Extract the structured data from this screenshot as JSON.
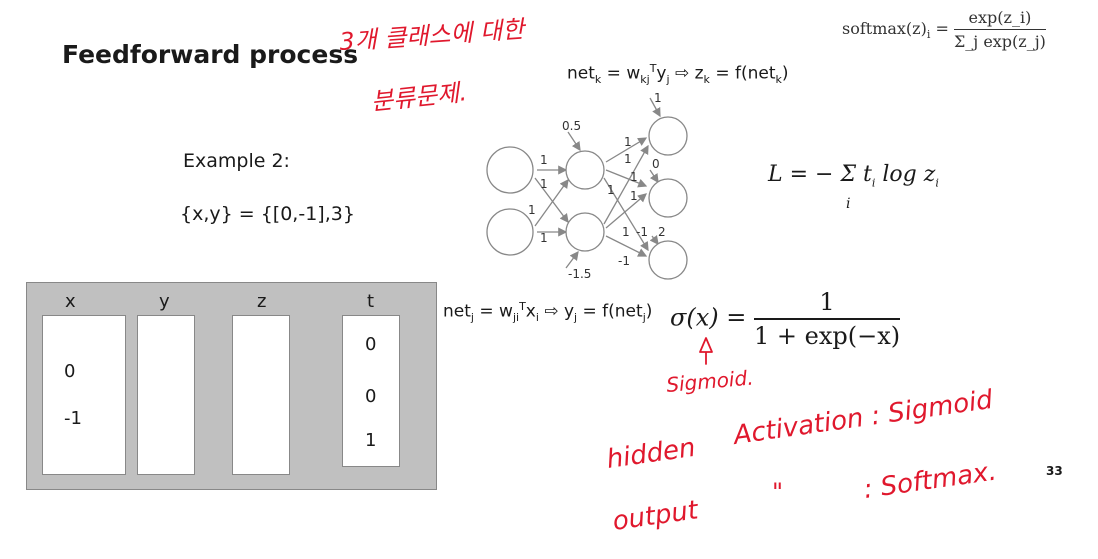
{
  "slide": {
    "title": "Feedforward process",
    "page_number": "33",
    "softmax": {
      "lhs": "softmax(z)",
      "sub": "i",
      "eq": " = ",
      "numerator": "exp(z_i)",
      "denominator": "Σ_j exp(z_j)"
    },
    "net_k": {
      "a": "net",
      "a_sub": "k",
      "b": " = w",
      "b_sub": "kj",
      "b_sup": "T",
      "c": "y",
      "c_sub": "j",
      "arrow": " ⇨ ",
      "d": "z",
      "d_sub": "k",
      "e": " = f(net",
      "e_sub": "k",
      "f": ")"
    },
    "net_j": {
      "a": "net",
      "a_sub": "j",
      "b": " = w",
      "b_sub": "ji",
      "b_sup": "T",
      "c": "x",
      "c_sub": "i",
      "arrow": " ⇨ ",
      "d": "y",
      "d_sub": "j",
      "e": " = f(net",
      "e_sub": "j",
      "f": ")"
    },
    "example_label": "Example 2:",
    "example_value": "{x,y} = {[0,-1],3}",
    "loss_formula": "L = − Σ t",
    "loss_sub_i": "i",
    "loss_tail": " log z",
    "loss_sub_i2": "i",
    "loss_sigma_index": "i",
    "sigmoid_lhs": "σ(x) = ",
    "sigmoid_num": "1",
    "sigmoid_den": "1 + exp(−x)"
  },
  "network": {
    "edge_labels": [
      "1",
      "1",
      "1",
      "1",
      "1",
      "1",
      "1",
      "1",
      "1",
      "1",
      "-1",
      "-1"
    ],
    "bias_top": "0.5",
    "bias_bottom": "-1.5",
    "output_biases": [
      "1",
      "0",
      "2"
    ]
  },
  "table": {
    "columns": [
      "x",
      "y",
      "z",
      "t"
    ],
    "x_values": [
      "0",
      "-1"
    ],
    "t_values": [
      "0",
      "0",
      "1"
    ]
  },
  "annotations": {
    "korean_line1": "3개 클래스에 대한",
    "korean_line2": "분류문제.",
    "sigmoid_note": "Sigmoid.",
    "hidden_label": "hidden",
    "activation_label": "Activation : Sigmoid",
    "output_label": "output",
    "ditto": "\"",
    "softmax_label": ": Softmax."
  },
  "colors": {
    "annotation": "#e0182d",
    "panel": "#c0c0c0"
  }
}
